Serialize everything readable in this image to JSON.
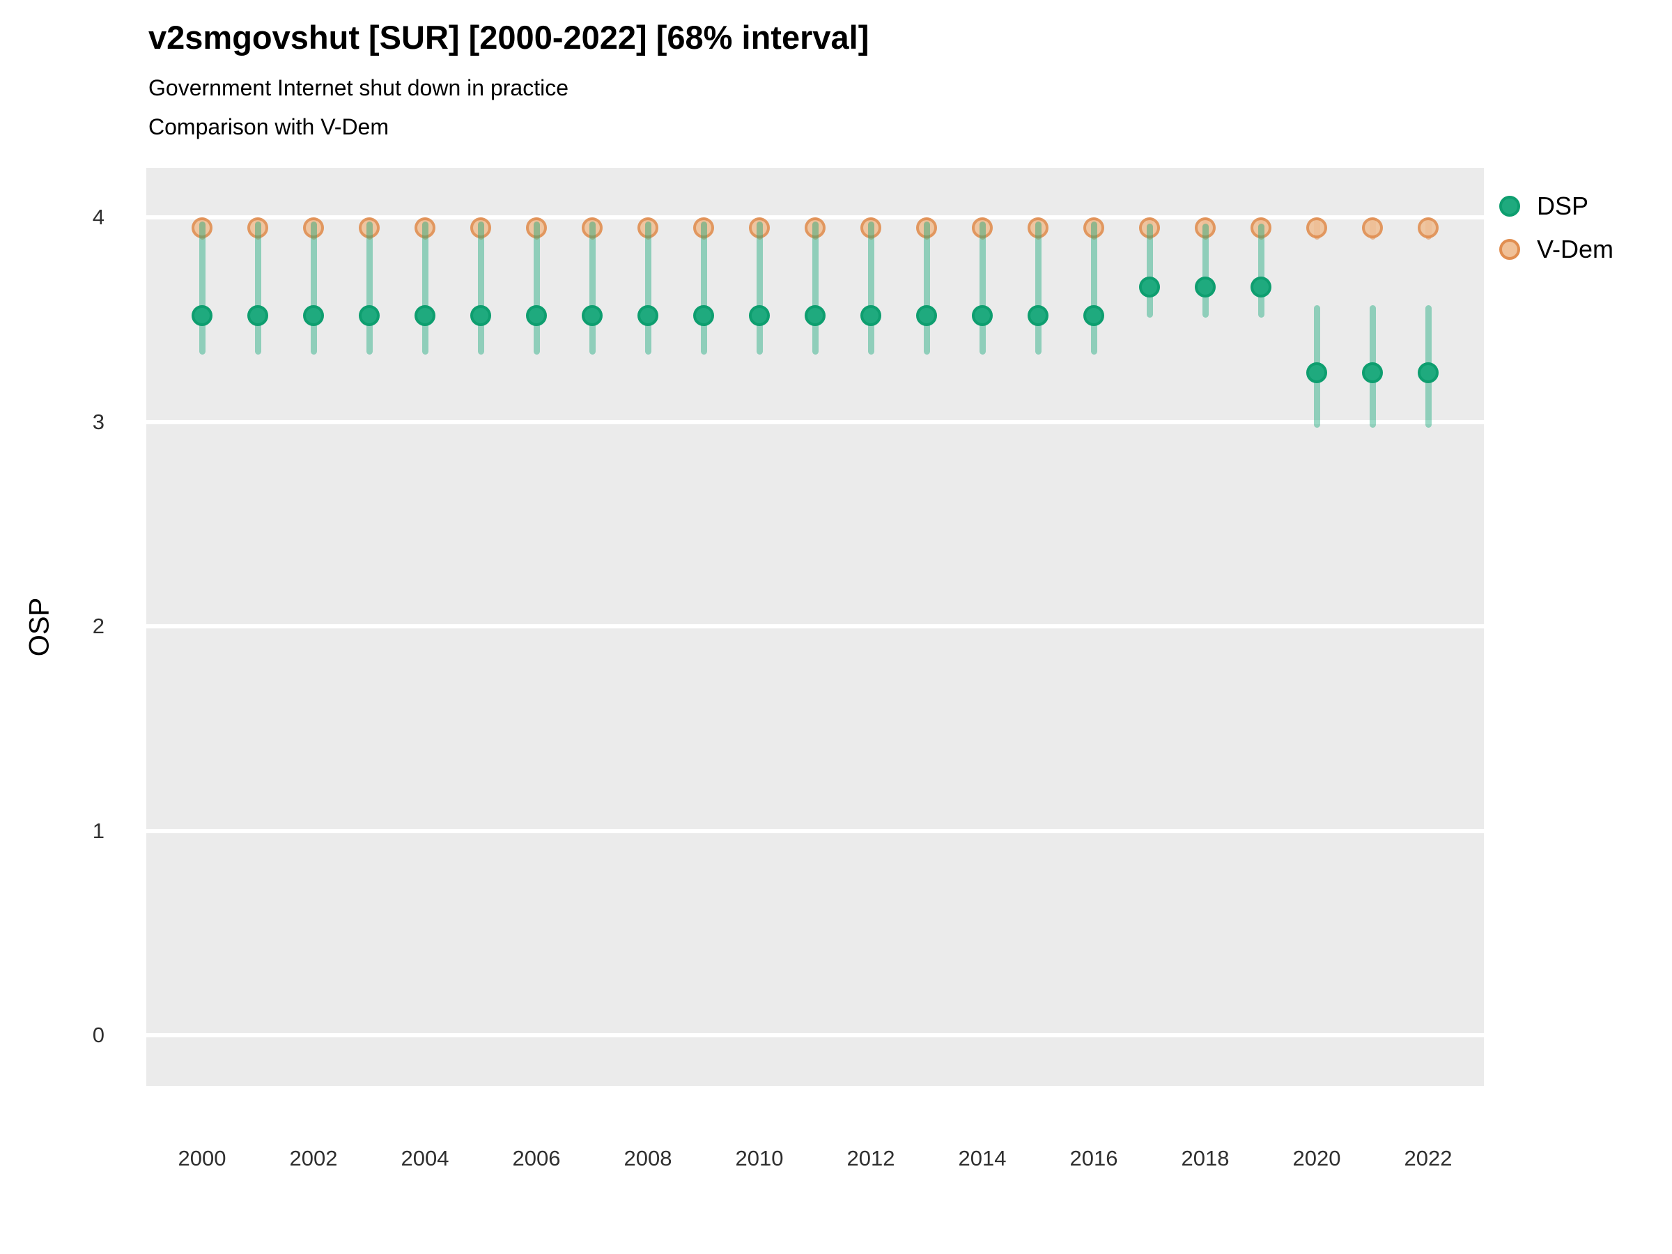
{
  "header": {
    "title": "v2smgovshut [SUR] [2000-2022] [68% interval]",
    "subtitle1": "Government Internet shut down in practice",
    "subtitle2": "Comparison with V-Dem"
  },
  "axes": {
    "y_title": "OSP",
    "y_ticks": [
      4,
      3,
      2,
      1,
      0
    ],
    "x_ticks": [
      2000,
      2002,
      2004,
      2006,
      2008,
      2010,
      2012,
      2014,
      2016,
      2018,
      2020,
      2022
    ]
  },
  "legend": {
    "items": [
      {
        "label": "DSP",
        "fill": "#1FAA7E",
        "stroke": "#0E9E6F"
      },
      {
        "label": "V-Dem",
        "fill": "#F0C198",
        "stroke": "#E18E50"
      }
    ]
  },
  "colors": {
    "panel_bg": "#EBEBEB",
    "gridline": "#FFFFFF",
    "dsp_point_fill": "#1FAA7E",
    "dsp_point_stroke": "#0E9E6F",
    "dsp_bar": "rgba(31,170,126,0.45)",
    "vdem_point_fill": "#F0C198",
    "vdem_point_stroke": "#E18E50",
    "vdem_bar": "rgba(223,138,74,0.55)"
  },
  "chart_data": {
    "type": "scatter",
    "title": "v2smgovshut [SUR] [2000-2022] [68% interval]",
    "subtitle": [
      "Government Internet shut down in practice",
      "Comparison with V-Dem"
    ],
    "interval": "68%",
    "ylabel": "OSP",
    "xlabel": "",
    "ylim": [
      -0.25,
      4.24
    ],
    "y_tick_values": [
      0,
      1,
      2,
      3,
      4
    ],
    "x_tick_years": [
      2000,
      2002,
      2004,
      2006,
      2008,
      2010,
      2012,
      2014,
      2016,
      2018,
      2020,
      2022
    ],
    "grid": "major-horizontal-only",
    "legend_position": "right",
    "x": [
      2000,
      2001,
      2002,
      2003,
      2004,
      2005,
      2006,
      2007,
      2008,
      2009,
      2010,
      2011,
      2012,
      2013,
      2014,
      2015,
      2016,
      2017,
      2018,
      2019,
      2020,
      2021,
      2022
    ],
    "series": [
      {
        "name": "DSP",
        "estimates": [
          3.52,
          3.52,
          3.52,
          3.52,
          3.52,
          3.52,
          3.52,
          3.52,
          3.52,
          3.52,
          3.52,
          3.52,
          3.52,
          3.52,
          3.52,
          3.52,
          3.52,
          3.66,
          3.66,
          3.66,
          3.24,
          3.24,
          3.24
        ],
        "lower": [
          3.33,
          3.33,
          3.33,
          3.33,
          3.33,
          3.33,
          3.33,
          3.33,
          3.33,
          3.33,
          3.33,
          3.33,
          3.33,
          3.33,
          3.33,
          3.33,
          3.33,
          3.51,
          3.51,
          3.51,
          2.97,
          2.97,
          2.97
        ],
        "upper": [
          3.98,
          3.98,
          3.98,
          3.98,
          3.98,
          3.98,
          3.98,
          3.98,
          3.98,
          3.98,
          3.98,
          3.98,
          3.98,
          3.98,
          3.98,
          3.98,
          3.98,
          3.97,
          3.97,
          3.97,
          3.57,
          3.57,
          3.57
        ]
      },
      {
        "name": "V-Dem",
        "estimates": [
          3.95,
          3.95,
          3.95,
          3.95,
          3.95,
          3.95,
          3.95,
          3.95,
          3.95,
          3.95,
          3.95,
          3.95,
          3.95,
          3.95,
          3.95,
          3.95,
          3.95,
          3.95,
          3.95,
          3.95,
          3.95,
          3.95,
          3.95
        ],
        "lower": [
          3.89,
          3.89,
          3.89,
          3.89,
          3.89,
          3.89,
          3.89,
          3.89,
          3.89,
          3.89,
          3.89,
          3.89,
          3.89,
          3.89,
          3.89,
          3.89,
          3.89,
          3.89,
          3.89,
          3.89,
          3.89,
          3.89,
          3.89
        ],
        "upper": [
          4.0,
          4.0,
          4.0,
          4.0,
          4.0,
          4.0,
          4.0,
          4.0,
          4.0,
          4.0,
          4.0,
          4.0,
          4.0,
          4.0,
          4.0,
          4.0,
          4.0,
          4.0,
          4.0,
          4.0,
          4.0,
          4.0,
          4.0
        ]
      }
    ]
  }
}
